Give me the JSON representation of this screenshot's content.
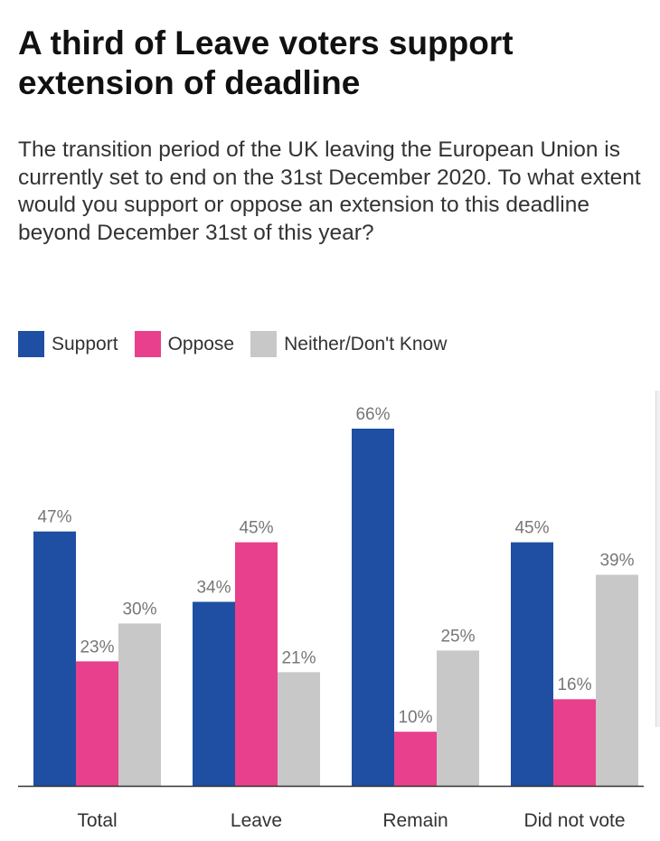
{
  "title": "A third of Leave voters support extension of deadline",
  "subtitle": "The transition period of the UK leaving the European Union is currently set to end on the 31st December 2020. To what extent would you support or oppose an extension to this deadline beyond December 31st of this year?",
  "colors": {
    "support": "#1f4fa3",
    "oppose": "#e8408c",
    "neither": "#c8c8c8",
    "label": "#777777",
    "axis": "#333333"
  },
  "chart_data": {
    "type": "bar",
    "title": "A third of Leave voters support extension of deadline",
    "categories": [
      "Total",
      "Leave",
      "Remain",
      "Did not vote"
    ],
    "series": [
      {
        "name": "Support",
        "values": [
          47,
          34,
          66,
          45
        ]
      },
      {
        "name": "Oppose",
        "values": [
          23,
          45,
          10,
          16
        ]
      },
      {
        "name": "Neither/Don't Know",
        "values": [
          30,
          21,
          25,
          39
        ]
      }
    ],
    "value_suffix": "%",
    "xlabel": "",
    "ylabel": "",
    "ylim": [
      0,
      66
    ],
    "grid": false,
    "legend": "top-left"
  }
}
